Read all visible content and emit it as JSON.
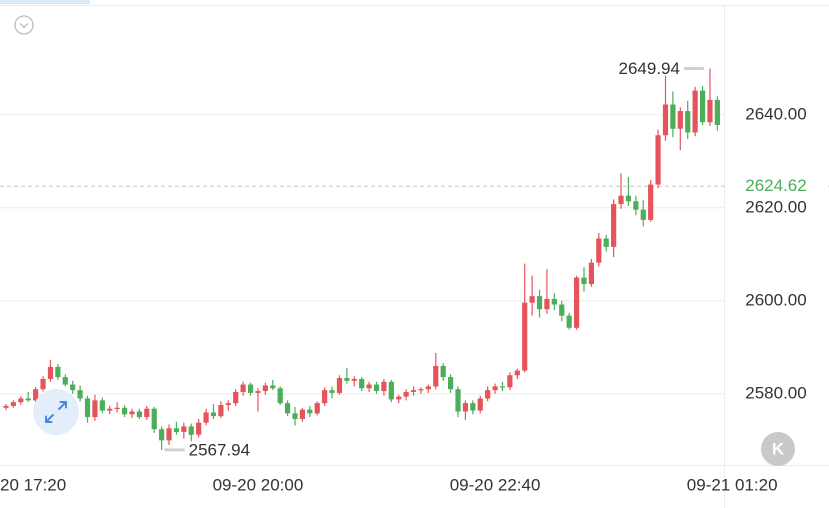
{
  "chart_data": {
    "type": "candlestick",
    "categories": [
      null,
      null,
      "20 17:20",
      null,
      null,
      null,
      null,
      null,
      null,
      null,
      null,
      null,
      null,
      null,
      null,
      null,
      null,
      null,
      null,
      null,
      null,
      null,
      null,
      null,
      null,
      null,
      null,
      null,
      null,
      null,
      null,
      null,
      null,
      null,
      "09-20 20:00",
      null,
      null,
      null,
      null,
      null,
      null,
      null,
      null,
      null,
      null,
      null,
      null,
      null,
      null,
      null,
      null,
      null,
      null,
      null,
      null,
      null,
      null,
      null,
      null,
      null,
      null,
      null,
      null,
      null,
      null,
      null,
      "09-20 22:40",
      null,
      null,
      null,
      null,
      null,
      null,
      null,
      null,
      null,
      null,
      null,
      null,
      null,
      null,
      null,
      null,
      null,
      null,
      null,
      null,
      null,
      null,
      null,
      null,
      null,
      null,
      null,
      null,
      null,
      null,
      null,
      "09-21 01:20"
    ],
    "open": [
      2577.0,
      2577.4,
      2578.2,
      2579.0,
      2578.6,
      2581.0,
      2583.2,
      2585.8,
      2583.6,
      2582.0,
      2580.8,
      2579.0,
      2575.0,
      2578.6,
      2576.4,
      2576.8,
      2577.0,
      2575.6,
      2576.2,
      2575.0,
      2576.8,
      2572.4,
      2570.0,
      2572.6,
      2571.8,
      2573.0,
      2571.2,
      2573.8,
      2576.0,
      2575.2,
      2577.6,
      2578.0,
      2580.4,
      2582.0,
      2580.2,
      2580.6,
      2581.8,
      2581.2,
      2578.0,
      2575.8,
      2574.6,
      2576.6,
      2575.8,
      2578.0,
      2580.8,
      2580.2,
      2583.4,
      2582.8,
      2583.2,
      2581.2,
      2582.0,
      2580.6,
      2582.6,
      2578.8,
      2579.4,
      2580.4,
      2580.8,
      2581.0,
      2581.6,
      2586.0,
      2583.6,
      2581.0,
      2576.2,
      2578.0,
      2576.4,
      2579.0,
      2580.8,
      2581.6,
      2581.4,
      2584.0,
      2585.0,
      2599.6,
      2601.0,
      2598.2,
      2600.4,
      2599.2,
      2596.8,
      2594.2,
      2605.0,
      2603.6,
      2608.2,
      2613.4,
      2611.6,
      2620.8,
      2622.6,
      2621.4,
      2619.6,
      2617.4,
      2625.0,
      2635.6,
      2642.2,
      2637.0,
      2640.8,
      2636.2,
      2645.2,
      2638.4,
      2643.2,
      null,
      null
    ],
    "high": [
      2577.8,
      2578.6,
      2579.5,
      2580.4,
      2581.5,
      2583.8,
      2587.3,
      2586.4,
      2584.2,
      2582.8,
      2581.8,
      2579.6,
      2579.8,
      2579.2,
      2577.4,
      2578.2,
      2577.6,
      2576.8,
      2576.8,
      2577.4,
      2577.2,
      2573.0,
      2573.4,
      2574.0,
      2573.8,
      2573.6,
      2574.6,
      2576.8,
      2577.8,
      2578.4,
      2578.6,
      2581.0,
      2582.6,
      2582.4,
      2581.2,
      2582.4,
      2583.0,
      2581.6,
      2578.6,
      2577.2,
      2577.0,
      2577.4,
      2578.4,
      2581.4,
      2581.6,
      2584.0,
      2585.6,
      2583.8,
      2583.6,
      2582.6,
      2582.6,
      2583.2,
      2583.0,
      2579.8,
      2581.0,
      2581.6,
      2581.4,
      2582.0,
      2588.8,
      2586.6,
      2584.2,
      2581.6,
      2578.6,
      2578.6,
      2579.6,
      2581.6,
      2582.2,
      2582.6,
      2584.6,
      2585.4,
      2608.0,
      2605.4,
      2602.4,
      2606.8,
      2601.6,
      2600.0,
      2597.4,
      2605.4,
      2607.2,
      2609.0,
      2614.6,
      2614.2,
      2621.8,
      2627.4,
      2626.6,
      2622.6,
      2621.6,
      2626.0,
      2636.8,
      2648.4,
      2645.0,
      2641.6,
      2643.0,
      2646.0,
      2646.2,
      2649.94,
      2644.0,
      null,
      null
    ],
    "low": [
      2576.5,
      2577.0,
      2577.6,
      2578.3,
      2578.2,
      2580.5,
      2582.6,
      2583.0,
      2581.6,
      2580.0,
      2578.4,
      2573.8,
      2574.2,
      2575.8,
      2575.6,
      2576.0,
      2575.0,
      2574.8,
      2574.6,
      2574.4,
      2571.6,
      2567.94,
      2569.0,
      2571.2,
      2570.4,
      2569.8,
      2570.6,
      2573.2,
      2574.6,
      2574.8,
      2576.4,
      2577.4,
      2579.6,
      2579.6,
      2576.2,
      2579.8,
      2580.8,
      2577.6,
      2575.2,
      2573.2,
      2574.0,
      2575.0,
      2575.4,
      2577.4,
      2579.0,
      2579.8,
      2582.2,
      2581.6,
      2580.6,
      2580.4,
      2580.0,
      2579.6,
      2578.2,
      2578.0,
      2578.6,
      2579.6,
      2580.0,
      2580.2,
      2581.0,
      2582.8,
      2580.2,
      2575.0,
      2574.4,
      2575.6,
      2575.8,
      2578.4,
      2580.0,
      2580.6,
      2580.8,
      2583.2,
      2584.6,
      2596.8,
      2596.4,
      2597.2,
      2598.0,
      2595.6,
      2593.8,
      2593.8,
      2602.0,
      2603.0,
      2607.4,
      2610.6,
      2609.4,
      2619.8,
      2620.4,
      2618.4,
      2616.0,
      2617.0,
      2624.2,
      2634.4,
      2635.2,
      2632.4,
      2634.8,
      2635.4,
      2637.8,
      2637.6,
      2636.6,
      null,
      null
    ],
    "close": [
      2577.4,
      2578.2,
      2579.0,
      2578.6,
      2581.0,
      2583.2,
      2585.8,
      2583.6,
      2582.0,
      2580.8,
      2579.0,
      2575.0,
      2578.6,
      2576.4,
      2576.8,
      2577.0,
      2575.6,
      2576.2,
      2575.0,
      2576.8,
      2572.4,
      2570.0,
      2572.6,
      2571.8,
      2573.0,
      2571.2,
      2573.8,
      2576.0,
      2575.2,
      2577.6,
      2578.0,
      2580.4,
      2582.0,
      2580.2,
      2580.6,
      2581.8,
      2581.2,
      2578.0,
      2575.8,
      2574.6,
      2576.6,
      2575.8,
      2578.0,
      2580.8,
      2580.2,
      2583.4,
      2582.8,
      2583.2,
      2581.2,
      2582.0,
      2580.6,
      2582.6,
      2578.8,
      2579.4,
      2580.4,
      2580.8,
      2581.0,
      2581.6,
      2586.0,
      2583.6,
      2581.0,
      2576.2,
      2578.0,
      2576.4,
      2579.0,
      2580.8,
      2581.6,
      2581.4,
      2584.0,
      2585.0,
      2599.6,
      2601.0,
      2598.2,
      2600.4,
      2599.2,
      2596.8,
      2594.2,
      2605.0,
      2603.6,
      2608.2,
      2613.4,
      2611.6,
      2620.8,
      2622.6,
      2621.4,
      2619.6,
      2617.4,
      2625.0,
      2635.6,
      2642.2,
      2637.0,
      2640.8,
      2636.2,
      2645.2,
      2638.4,
      2643.2,
      2637.8,
      null,
      null
    ],
    "up_color": "#e5545b",
    "down_color": "#4cae5a",
    "ylim": [
      2564.7,
      2663.6
    ],
    "yticks": [
      {
        "value": 2580,
        "label": "2580.00"
      },
      {
        "value": 2600,
        "label": "2600.00"
      },
      {
        "value": 2620,
        "label": "2620.00"
      },
      {
        "value": 2640,
        "label": "2640.00"
      }
    ],
    "grid": true,
    "last_price": 2624.62,
    "last_price_color": "#4cae5a"
  },
  "buttons": {
    "kline": "K"
  }
}
